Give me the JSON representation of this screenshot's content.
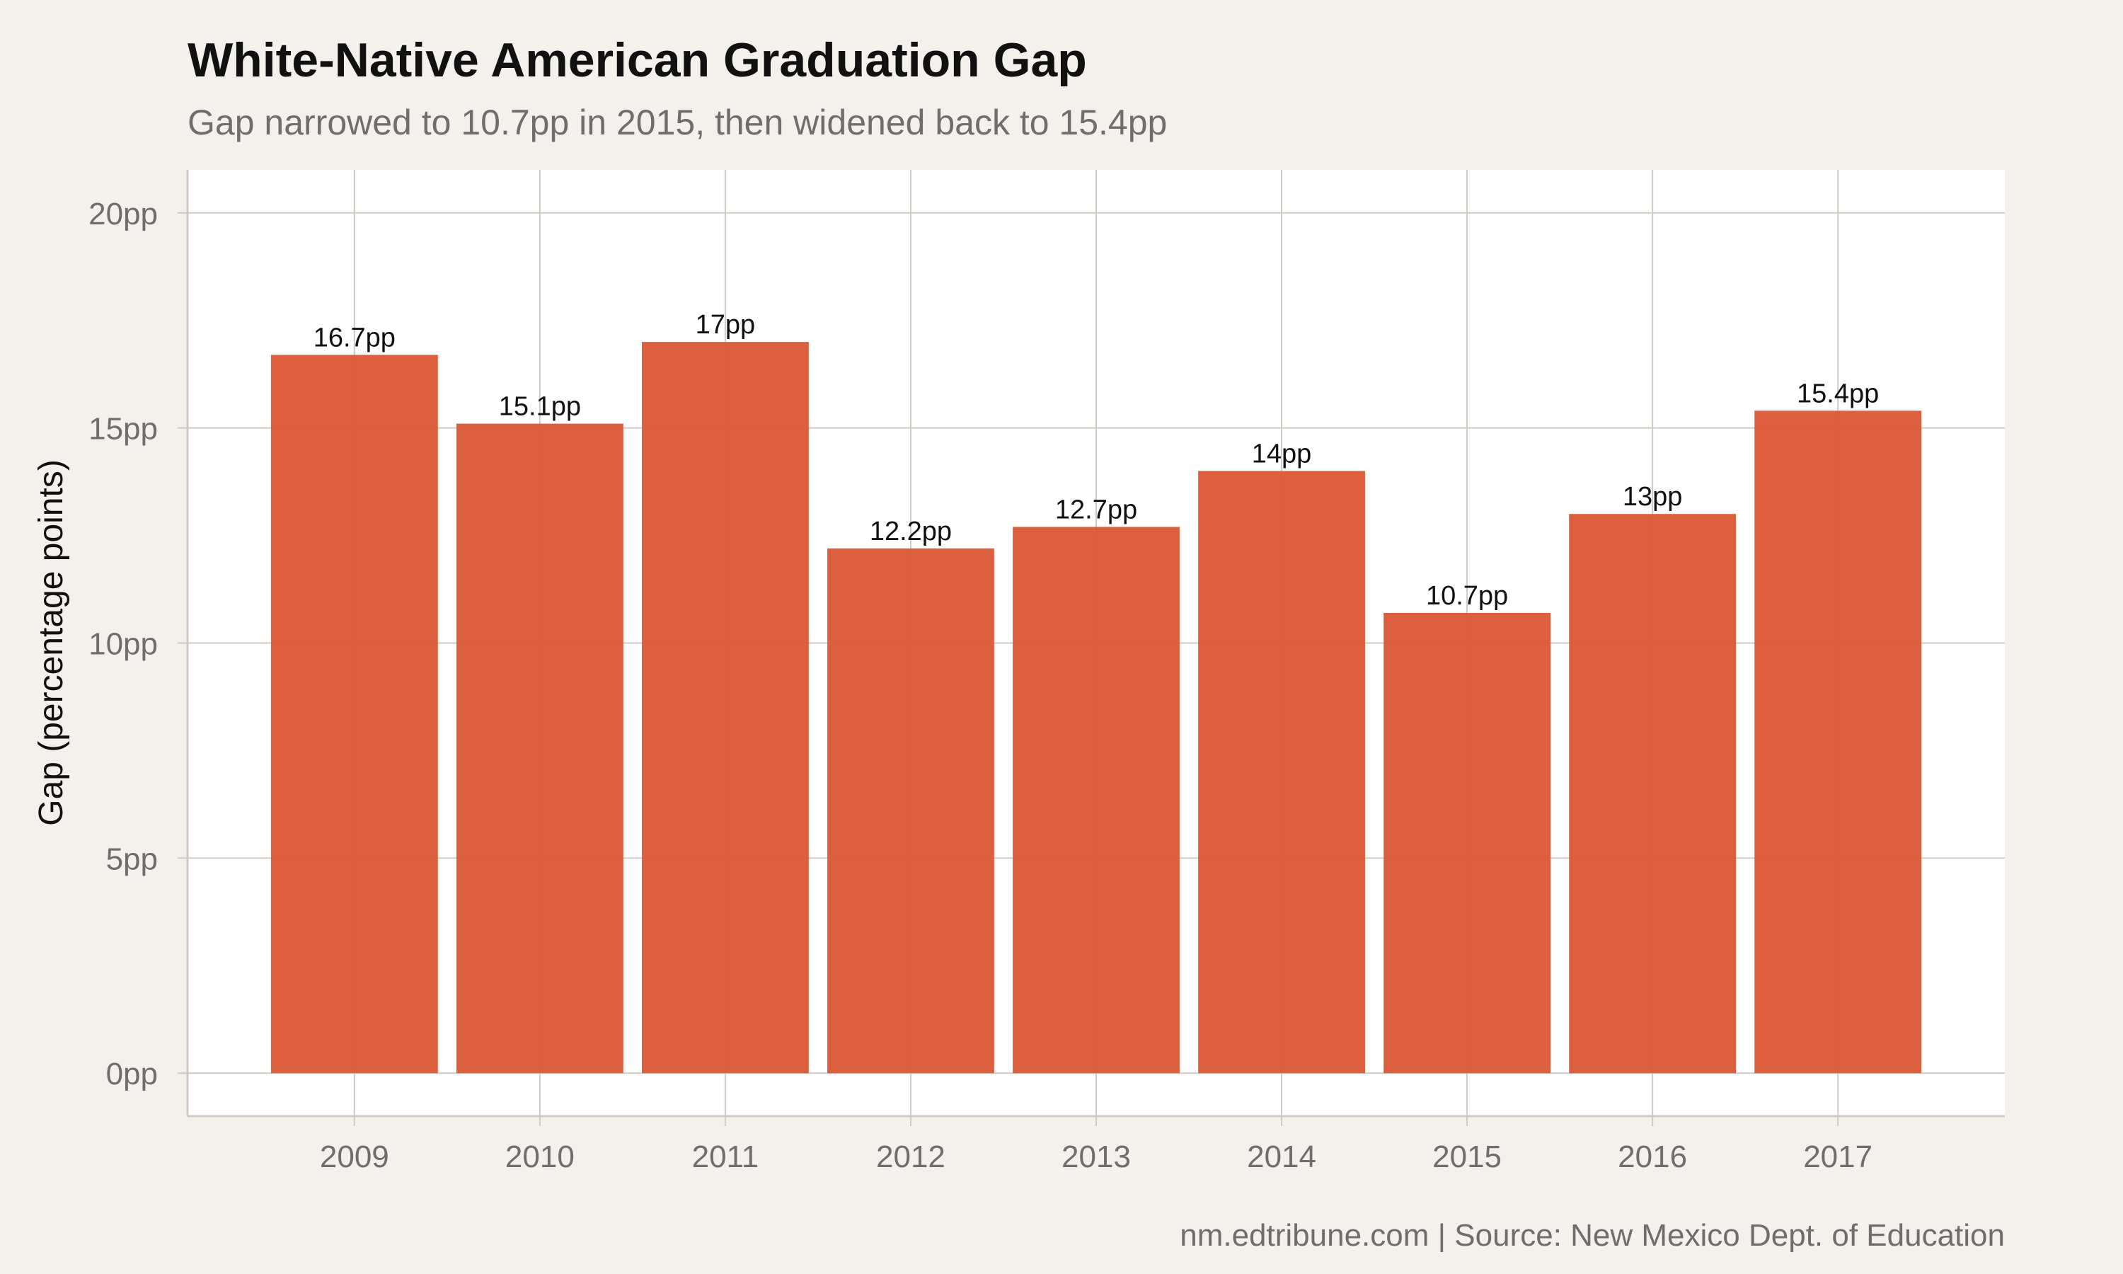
{
  "colors": {
    "background": "#f4f1ec",
    "panel": "#ffffff",
    "grid": "#cfcbc3",
    "bar": "#dc5a36"
  },
  "chart_data": {
    "type": "bar",
    "title": "White-Native American Graduation Gap",
    "subtitle": "Gap narrowed to 10.7pp in 2015, then widened back to 15.4pp",
    "ylabel": "Gap (percentage points)",
    "xlabel": "",
    "caption": "nm.edtribune.com | Source: New Mexico Dept. of Education",
    "categories": [
      "2009",
      "2010",
      "2011",
      "2012",
      "2013",
      "2014",
      "2015",
      "2016",
      "2017"
    ],
    "values": [
      16.7,
      15.1,
      17,
      12.2,
      12.7,
      14,
      10.7,
      13,
      15.4
    ],
    "value_labels": [
      "16.7pp",
      "15.1pp",
      "17pp",
      "12.2pp",
      "12.7pp",
      "14pp",
      "10.7pp",
      "13pp",
      "15.4pp"
    ],
    "ylim": [
      -1,
      21
    ],
    "yticks": [
      0,
      5,
      10,
      15,
      20
    ],
    "ytick_labels": [
      "0pp",
      "5pp",
      "10pp",
      "15pp",
      "20pp"
    ],
    "grid": true,
    "legend": "none"
  }
}
